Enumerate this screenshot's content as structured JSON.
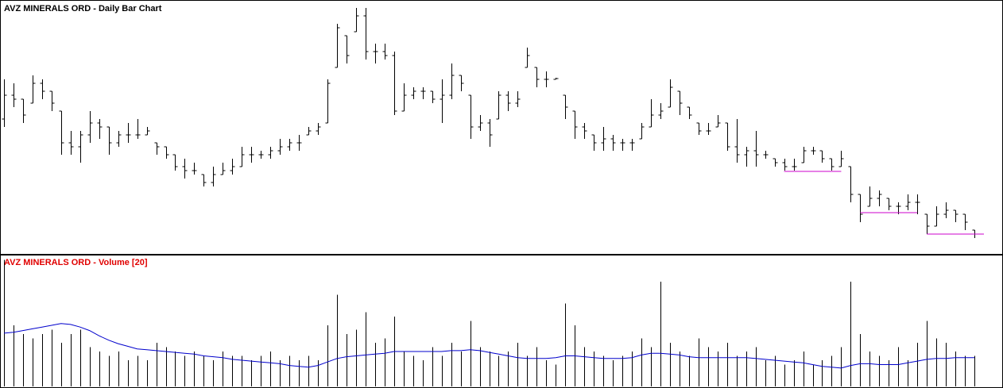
{
  "chart_data": [
    {
      "type": "ohlc",
      "title": "AVZ MINERALS ORD - Daily Bar Chart",
      "color": "#000000",
      "level_color": "#cc00cc",
      "ylim": [
        0,
        320
      ],
      "open": [
        170,
        200,
        195,
        190,
        215,
        205,
        180,
        140,
        135,
        150,
        165,
        160,
        140,
        150,
        150,
        150,
        140,
        135,
        125,
        110,
        105,
        100,
        90,
        100,
        105,
        110,
        125,
        125,
        125,
        130,
        135,
        140,
        150,
        155,
        165,
        235,
        275,
        280,
        300,
        255,
        255,
        250,
        180,
        200,
        205,
        205,
        195,
        200,
        225,
        200,
        160,
        165,
        170,
        200,
        190,
        235,
        235,
        220,
        220,
        200,
        180,
        160,
        150,
        140,
        145,
        140,
        140,
        145,
        160,
        175,
        185,
        205,
        185,
        165,
        155,
        160,
        165,
        135,
        125,
        130,
        125,
        120,
        115,
        110,
        115,
        130,
        130,
        120,
        110,
        110,
        75,
        60,
        70,
        70,
        60,
        60,
        65,
        50,
        35,
        50,
        55,
        50,
        30
      ],
      "high": [
        220,
        215,
        195,
        225,
        220,
        205,
        180,
        155,
        155,
        180,
        170,
        160,
        155,
        165,
        170,
        160,
        140,
        135,
        125,
        120,
        115,
        100,
        110,
        115,
        120,
        135,
        135,
        130,
        135,
        145,
        145,
        150,
        160,
        165,
        220,
        290,
        275,
        310,
        310,
        265,
        265,
        255,
        215,
        210,
        210,
        205,
        220,
        240,
        225,
        200,
        175,
        170,
        205,
        205,
        205,
        260,
        235,
        230,
        222,
        200,
        180,
        165,
        150,
        160,
        150,
        145,
        145,
        165,
        195,
        190,
        220,
        205,
        185,
        165,
        165,
        175,
        165,
        170,
        135,
        155,
        130,
        120,
        120,
        120,
        135,
        135,
        130,
        120,
        130,
        110,
        75,
        85,
        80,
        70,
        65,
        75,
        75,
        50,
        60,
        65,
        55,
        50,
        30
      ],
      "low": [
        160,
        185,
        165,
        190,
        195,
        180,
        125,
        125,
        115,
        140,
        145,
        125,
        135,
        140,
        145,
        150,
        125,
        120,
        105,
        95,
        100,
        85,
        85,
        100,
        100,
        110,
        115,
        120,
        120,
        125,
        130,
        130,
        150,
        150,
        165,
        235,
        240,
        280,
        245,
        240,
        245,
        175,
        180,
        195,
        195,
        190,
        165,
        195,
        205,
        145,
        155,
        135,
        170,
        180,
        185,
        235,
        210,
        210,
        220,
        170,
        145,
        145,
        130,
        130,
        130,
        130,
        130,
        145,
        160,
        170,
        185,
        175,
        170,
        150,
        150,
        160,
        130,
        115,
        110,
        110,
        120,
        110,
        105,
        105,
        115,
        125,
        115,
        105,
        110,
        65,
        40,
        60,
        60,
        55,
        50,
        55,
        50,
        25,
        35,
        45,
        40,
        30,
        20
      ],
      "close": [
        200,
        195,
        175,
        215,
        205,
        190,
        140,
        135,
        150,
        165,
        160,
        140,
        150,
        150,
        150,
        155,
        135,
        125,
        110,
        105,
        105,
        90,
        100,
        105,
        110,
        125,
        125,
        125,
        130,
        135,
        140,
        140,
        155,
        160,
        215,
        285,
        250,
        300,
        255,
        255,
        250,
        180,
        200,
        205,
        205,
        195,
        200,
        225,
        215,
        160,
        165,
        150,
        200,
        190,
        195,
        250,
        220,
        220,
        221,
        185,
        160,
        155,
        140,
        145,
        140,
        140,
        140,
        160,
        175,
        180,
        210,
        190,
        175,
        155,
        155,
        165,
        135,
        125,
        130,
        125,
        125,
        115,
        110,
        110,
        130,
        130,
        120,
        110,
        120,
        75,
        50,
        70,
        75,
        60,
        60,
        65,
        65,
        35,
        50,
        55,
        50,
        40,
        25
      ],
      "levels": [
        {
          "value": 104,
          "from": 82,
          "to": 88
        },
        {
          "value": 52,
          "from": 90,
          "to": 96
        },
        {
          "value": 25,
          "from": 97,
          "to": 103
        }
      ]
    },
    {
      "type": "volume",
      "title": "AVZ MINERALS ORD - Volume [20]",
      "color": "#000000",
      "average_color": "#0000cc",
      "ylim": [
        0,
        150
      ],
      "values": [
        145,
        70,
        60,
        55,
        60,
        65,
        50,
        60,
        65,
        45,
        40,
        35,
        40,
        30,
        35,
        30,
        50,
        45,
        40,
        35,
        40,
        35,
        30,
        40,
        35,
        35,
        30,
        35,
        40,
        30,
        35,
        30,
        35,
        30,
        70,
        105,
        60,
        65,
        85,
        50,
        55,
        80,
        40,
        35,
        30,
        45,
        35,
        50,
        40,
        75,
        45,
        40,
        35,
        40,
        50,
        35,
        45,
        30,
        25,
        95,
        70,
        45,
        40,
        35,
        30,
        35,
        40,
        55,
        45,
        120,
        50,
        40,
        35,
        55,
        45,
        40,
        50,
        35,
        40,
        45,
        30,
        35,
        25,
        30,
        40,
        25,
        30,
        35,
        45,
        120,
        60,
        40,
        35,
        30,
        45,
        30,
        50,
        75,
        55,
        50,
        40,
        35,
        35
      ],
      "average": [
        61,
        62,
        64,
        66,
        68,
        70,
        72,
        71,
        68,
        64,
        58,
        53,
        49,
        46,
        43,
        42,
        41,
        40,
        39,
        38,
        37,
        35,
        34,
        33,
        31,
        30,
        29,
        28,
        27,
        26,
        24,
        23,
        22,
        24,
        28,
        32,
        34,
        35,
        36,
        37,
        38,
        40,
        40,
        40,
        40,
        40,
        40,
        41,
        41,
        42,
        41,
        39,
        37,
        35,
        33,
        32,
        32,
        32,
        33,
        35,
        35,
        34,
        33,
        32,
        32,
        32,
        33,
        36,
        38,
        38,
        37,
        36,
        34,
        33,
        33,
        33,
        33,
        33,
        33,
        32,
        31,
        30,
        29,
        28,
        27,
        25,
        23,
        22,
        21,
        24,
        26,
        26,
        25,
        25,
        25,
        27,
        29,
        31,
        32,
        32,
        33,
        33,
        33
      ]
    }
  ]
}
